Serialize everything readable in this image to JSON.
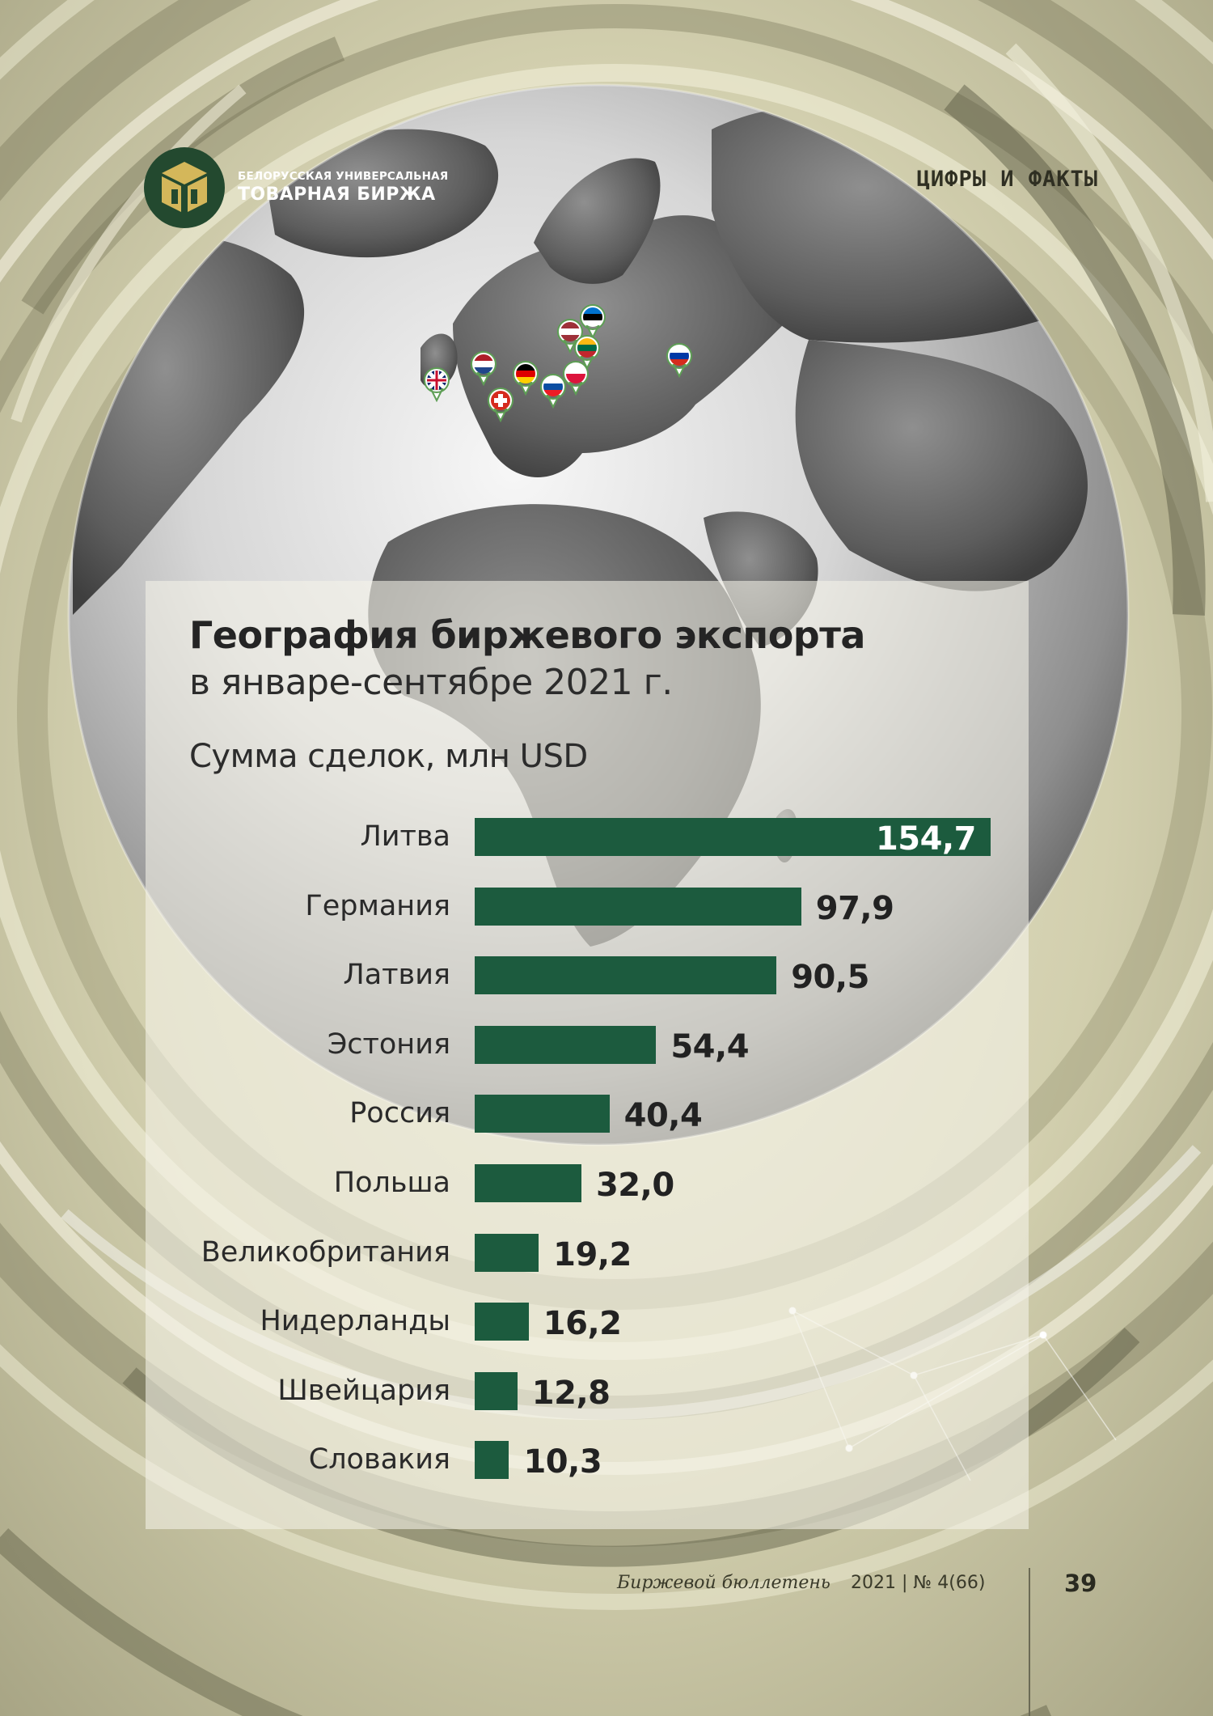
{
  "logo": {
    "line1": "БЕЛОРУССКАЯ УНИВЕРСАЛЬНАЯ",
    "line2": "ТОВАРНАЯ БИРЖА"
  },
  "section_title": "ЦИФРЫ И ФАКТЫ",
  "map_markers": [
    "uk-flag",
    "netherlands-flag",
    "switzerland-flag",
    "germany-flag",
    "slovakia-flag",
    "latvia-flag",
    "estonia-flag",
    "lithuania-flag",
    "poland-flag",
    "russia-flag"
  ],
  "colors": {
    "bar": "#1c5b3e",
    "logo_bg": "#23492f",
    "logo_gold": "#d4b75a"
  },
  "chart_data": {
    "type": "bar",
    "orientation": "horizontal",
    "title": "География биржевого экспорта",
    "subtitle": "в январе-сентябре 2021 г.",
    "unit_label": "Сумма сделок, млн USD",
    "categories": [
      "Литва",
      "Германия",
      "Латвия",
      "Эстония",
      "Россия",
      "Польша",
      "Великобритания",
      "Нидерланды",
      "Швейцария",
      "Словакия"
    ],
    "values": [
      154.7,
      97.9,
      90.5,
      54.4,
      40.4,
      32.0,
      19.2,
      16.2,
      12.8,
      10.3
    ],
    "value_labels": [
      "154,7",
      "97,9",
      "90,5",
      "54,4",
      "40,4",
      "32,0",
      "19,2",
      "16,2",
      "12,8",
      "10,3"
    ],
    "grid": false,
    "legend": "none"
  },
  "footer": {
    "publication": "Биржевой бюллетень",
    "issue": "2021 | № 4(66)",
    "page": "39"
  }
}
